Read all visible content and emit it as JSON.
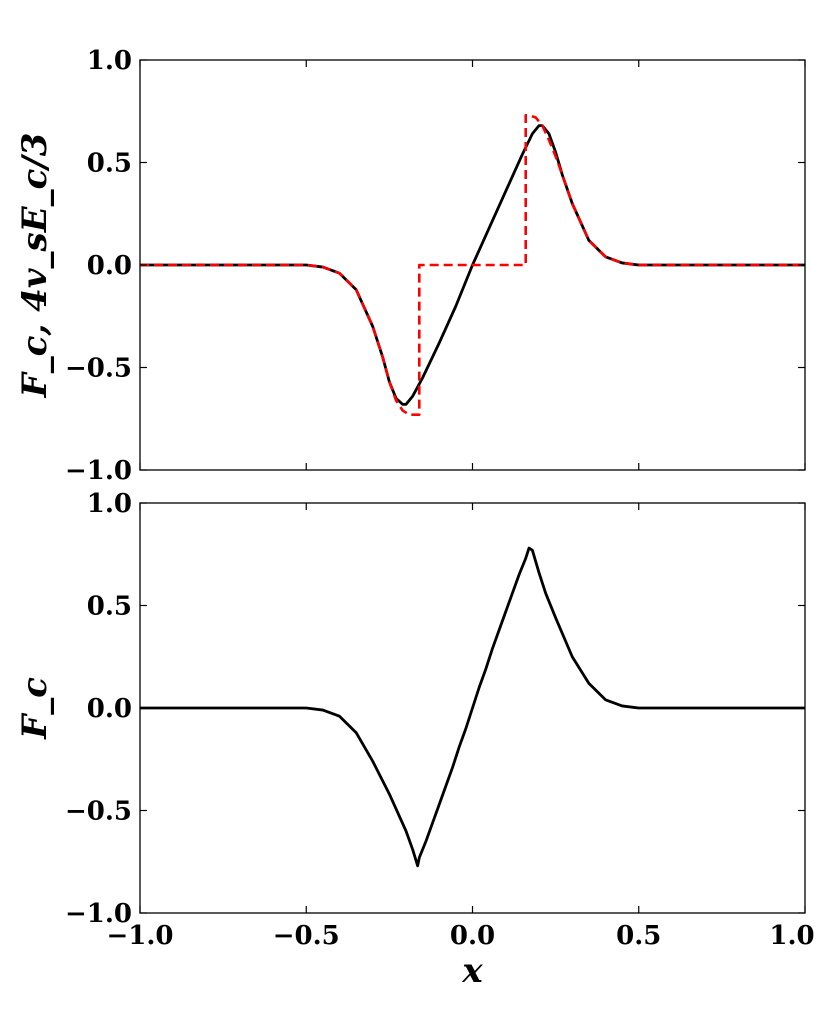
{
  "chart_data": [
    {
      "type": "line",
      "title": "",
      "xlabel": "",
      "ylabel": "F_c, 4v_sE_c/3",
      "xlim": [
        -1.0,
        1.0
      ],
      "ylim": [
        -1.0,
        1.0
      ],
      "xticks": [
        -1.0,
        -0.5,
        0.0,
        0.5,
        1.0
      ],
      "xtick_labels": [
        "",
        "",
        "",
        "",
        ""
      ],
      "yticks": [
        -1.0,
        -0.5,
        0.0,
        0.5,
        1.0
      ],
      "ytick_labels": [
        "−1.0",
        "−0.5",
        "0.0",
        "0.5",
        "1.0"
      ],
      "grid": false,
      "series": [
        {
          "style": "solid",
          "color": "#000000",
          "x": [
            -1.0,
            -0.5,
            -0.45,
            -0.4,
            -0.35,
            -0.3,
            -0.27,
            -0.25,
            -0.23,
            -0.21,
            -0.2,
            -0.18,
            -0.15,
            -0.1,
            -0.05,
            0.0,
            0.05,
            0.1,
            0.15,
            0.18,
            0.2,
            0.21,
            0.23,
            0.25,
            0.27,
            0.3,
            0.35,
            0.4,
            0.45,
            0.5,
            1.0
          ],
          "y": [
            0.0,
            0.0,
            -0.01,
            -0.04,
            -0.12,
            -0.3,
            -0.45,
            -0.57,
            -0.65,
            -0.68,
            -0.68,
            -0.64,
            -0.55,
            -0.38,
            -0.2,
            0.0,
            0.18,
            0.36,
            0.54,
            0.64,
            0.68,
            0.68,
            0.64,
            0.55,
            0.44,
            0.3,
            0.12,
            0.04,
            0.01,
            0.0,
            0.0
          ]
        },
        {
          "style": "dashed",
          "color": "#ff0000",
          "x": [
            -1.0,
            -0.5,
            -0.45,
            -0.4,
            -0.35,
            -0.3,
            -0.27,
            -0.25,
            -0.23,
            -0.21,
            -0.19,
            -0.17,
            -0.16,
            -0.16,
            0.16,
            0.16,
            0.17,
            0.19,
            0.21,
            0.23,
            0.25,
            0.27,
            0.3,
            0.35,
            0.4,
            0.45,
            0.5,
            1.0
          ],
          "y": [
            0.0,
            0.0,
            -0.01,
            -0.04,
            -0.12,
            -0.3,
            -0.45,
            -0.57,
            -0.66,
            -0.71,
            -0.73,
            -0.73,
            -0.73,
            0.0,
            0.0,
            0.73,
            0.73,
            0.72,
            0.68,
            0.61,
            0.53,
            0.44,
            0.3,
            0.12,
            0.04,
            0.01,
            0.0,
            0.0
          ]
        }
      ]
    },
    {
      "type": "line",
      "title": "",
      "xlabel": "x",
      "ylabel": "F_c",
      "xlim": [
        -1.0,
        1.0
      ],
      "ylim": [
        -1.0,
        1.0
      ],
      "xticks": [
        -1.0,
        -0.5,
        0.0,
        0.5,
        1.0
      ],
      "xtick_labels": [
        "−1.0",
        "−0.5",
        "0.0",
        "0.5",
        "1.0"
      ],
      "yticks": [
        -1.0,
        -0.5,
        0.0,
        0.5,
        1.0
      ],
      "ytick_labels": [
        "−1.0",
        "−0.5",
        "0.0",
        "0.5",
        "1.0"
      ],
      "grid": false,
      "series": [
        {
          "style": "solid",
          "color": "#000000",
          "x": [
            -1.0,
            -0.5,
            -0.45,
            -0.4,
            -0.35,
            -0.3,
            -0.25,
            -0.2,
            -0.18,
            -0.165,
            -0.16,
            -0.14,
            -0.12,
            -0.1,
            -0.08,
            -0.06,
            -0.04,
            -0.02,
            0.0,
            0.02,
            0.04,
            0.06,
            0.08,
            0.1,
            0.12,
            0.14,
            0.16,
            0.17,
            0.18,
            0.2,
            0.22,
            0.25,
            0.3,
            0.35,
            0.4,
            0.45,
            0.5,
            1.0
          ],
          "y": [
            0.0,
            0.0,
            -0.01,
            -0.04,
            -0.12,
            -0.26,
            -0.42,
            -0.6,
            -0.69,
            -0.77,
            -0.73,
            -0.65,
            -0.56,
            -0.47,
            -0.38,
            -0.29,
            -0.19,
            -0.1,
            0.0,
            0.1,
            0.19,
            0.29,
            0.38,
            0.47,
            0.56,
            0.65,
            0.73,
            0.78,
            0.77,
            0.66,
            0.56,
            0.44,
            0.25,
            0.12,
            0.04,
            0.01,
            0.0,
            0.0
          ]
        }
      ]
    }
  ]
}
